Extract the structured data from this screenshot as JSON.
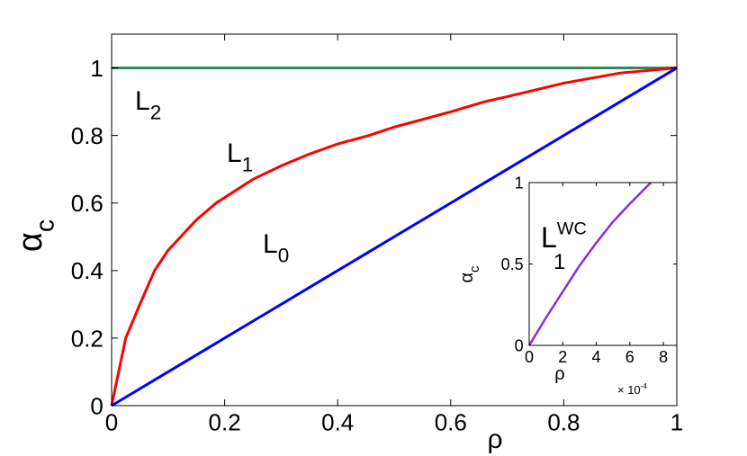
{
  "chart_data": [
    {
      "type": "line",
      "x": [
        0,
        0.01,
        0.025,
        0.05,
        0.076,
        0.1,
        0.15,
        0.185,
        0.25,
        0.3,
        0.35,
        0.4,
        0.455,
        0.5,
        0.6,
        0.66,
        0.7,
        0.8,
        0.9,
        1
      ],
      "series": [
        {
          "color": "#2e8b57",
          "values": [
            1,
            1,
            1,
            1,
            1,
            1,
            1,
            1,
            1,
            1,
            1,
            1,
            1,
            1,
            1,
            1,
            1,
            1,
            1,
            1
          ]
        },
        {
          "color": "#ff0000",
          "values": [
            0,
            0.08,
            0.2,
            0.3,
            0.4,
            0.46,
            0.55,
            0.6,
            0.67,
            0.71,
            0.745,
            0.775,
            0.8,
            0.825,
            0.87,
            0.9,
            0.915,
            0.955,
            0.985,
            1
          ]
        },
        {
          "color": "#0000ff",
          "values": [
            0,
            0.01,
            0.025,
            0.05,
            0.076,
            0.1,
            0.15,
            0.185,
            0.25,
            0.3,
            0.35,
            0.4,
            0.455,
            0.5,
            0.6,
            0.66,
            0.7,
            0.8,
            0.9,
            1
          ]
        }
      ],
      "xlim": [
        0,
        1
      ],
      "ylim": [
        0,
        1.1
      ],
      "xticks": [
        0,
        0.2,
        0.4,
        0.6,
        0.8,
        1
      ],
      "yticks": [
        0,
        0.2,
        0.4,
        0.6,
        0.8,
        1
      ],
      "xlabel": {
        "text": "ρ"
      },
      "ylabel": {
        "text": "α",
        "sub": "c"
      },
      "annotations": [
        {
          "text": "L",
          "sub": "2"
        },
        {
          "text": "L",
          "sub": "1"
        },
        {
          "text": "L",
          "sub": "0"
        }
      ]
    },
    {
      "type": "line",
      "x": [
        0,
        1,
        2,
        3,
        4,
        5,
        6,
        7.25
      ],
      "series": [
        {
          "color": "#8a2be2",
          "values": [
            0,
            0.17,
            0.33,
            0.49,
            0.63,
            0.76,
            0.87,
            1
          ]
        }
      ],
      "xlim": [
        0,
        8.8
      ],
      "ylim": [
        0,
        1
      ],
      "xticks": [
        0,
        2,
        4,
        6,
        8
      ],
      "yticks": [
        0,
        0.5,
        1
      ],
      "xlabel": {
        "text": "ρ"
      },
      "ylabel": {
        "text": "α",
        "sub": "c"
      },
      "x_scale_label": {
        "text": "× 10",
        "sup": "-4"
      },
      "annotations": [
        {
          "text": "L",
          "sub": "1",
          "sup": "WC"
        }
      ]
    }
  ]
}
